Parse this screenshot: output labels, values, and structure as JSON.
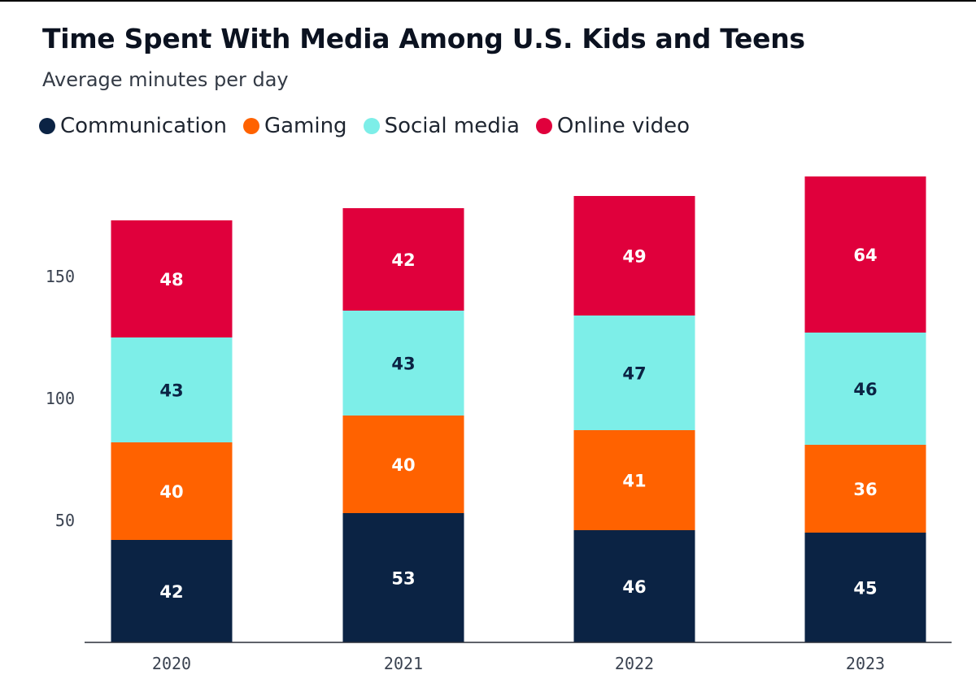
{
  "chart_data": {
    "type": "bar",
    "stacked": true,
    "title": "Time Spent With Media Among U.S. Kids and Teens",
    "subtitle": "Average minutes per day",
    "xlabel": "",
    "ylabel": "",
    "categories": [
      "2020",
      "2021",
      "2022",
      "2023"
    ],
    "series": [
      {
        "name": "Communication",
        "color": "#0b2344",
        "label_color": "#ffffff",
        "values": [
          42,
          53,
          46,
          45
        ]
      },
      {
        "name": "Gaming",
        "color": "#ff6200",
        "label_color": "#ffffff",
        "values": [
          40,
          40,
          41,
          36
        ]
      },
      {
        "name": "Social media",
        "color": "#7deee8",
        "label_color": "#0b2344",
        "values": [
          43,
          43,
          47,
          46
        ]
      },
      {
        "name": "Online video",
        "color": "#e0003c",
        "label_color": "#ffffff",
        "values": [
          48,
          42,
          49,
          64
        ]
      }
    ],
    "yticks": [
      50,
      100,
      150
    ],
    "ylim": [
      0,
      192
    ],
    "grid": false,
    "legend_position": "top-left"
  }
}
